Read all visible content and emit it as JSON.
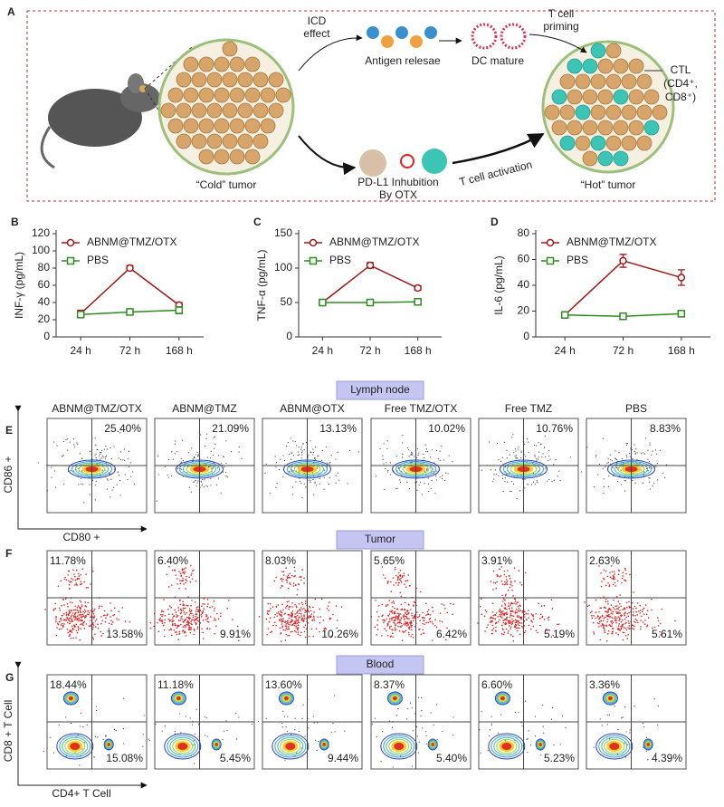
{
  "panel_a": {
    "letter": "A",
    "icd_effect": [
      "ICD",
      "effect"
    ],
    "antigen": "Antigen relesae",
    "dc": "DC mature",
    "priming": [
      "T cell",
      "priming"
    ],
    "ctl": [
      "CTL",
      "(CD4⁺,",
      "CD8⁺)"
    ],
    "cold": "“Cold” tumor",
    "pdl1": [
      "PD-L1 Inhubition",
      "By OTX"
    ],
    "activation": "T cell activation",
    "hot": "“Hot” tumor"
  },
  "chart_data": [
    {
      "type": "line",
      "panel": "B",
      "y_label": "INF-γ (pg/mL)",
      "categories": [
        "24 h",
        "72 h",
        "168 h"
      ],
      "ylim": [
        0,
        120
      ],
      "yticks": [
        0,
        20,
        40,
        60,
        80,
        100,
        120
      ],
      "legend": "upper left",
      "series": [
        {
          "name": "ABNM@TMZ/OTX",
          "color": "#a01818",
          "marker": "circle",
          "values": [
            27,
            80,
            37
          ],
          "errors": [
            4,
            3,
            3
          ]
        },
        {
          "name": "PBS",
          "color": "#2e8b1e",
          "marker": "square",
          "values": [
            26,
            29,
            31
          ],
          "errors": [
            3,
            3,
            4
          ]
        }
      ]
    },
    {
      "type": "line",
      "panel": "C",
      "y_label": "TNF-α (pg/mL)",
      "categories": [
        "24 h",
        "72 h",
        "168 h"
      ],
      "ylim": [
        0,
        150
      ],
      "yticks": [
        0,
        50,
        100,
        150
      ],
      "legend": "upper left",
      "series": [
        {
          "name": "ABNM@TMZ/OTX",
          "color": "#a01818",
          "marker": "circle",
          "values": [
            50,
            104,
            71
          ],
          "errors": [
            2,
            4,
            3
          ]
        },
        {
          "name": "PBS",
          "color": "#2e8b1e",
          "marker": "square",
          "values": [
            50,
            50,
            51
          ],
          "errors": [
            2,
            3,
            2
          ]
        }
      ]
    },
    {
      "type": "line",
      "panel": "D",
      "y_label": "IL-6 (pg/mL)",
      "categories": [
        "24 h",
        "72 h",
        "168 h"
      ],
      "ylim": [
        0,
        80
      ],
      "yticks": [
        0,
        20,
        40,
        60,
        80
      ],
      "legend": "upper left",
      "series": [
        {
          "name": "ABNM@TMZ/OTX",
          "color": "#a01818",
          "marker": "circle",
          "values": [
            17,
            59,
            46
          ],
          "errors": [
            1,
            5,
            6
          ]
        },
        {
          "name": "PBS",
          "color": "#2e8b1e",
          "marker": "square",
          "values": [
            17,
            16,
            18
          ],
          "errors": [
            1,
            1,
            2
          ]
        }
      ]
    }
  ],
  "flow": [
    {
      "letter": "E",
      "section": "Lymph node",
      "y_axis": "CD86 +",
      "x_axis": "CD80 +",
      "style": "contour",
      "plots": [
        {
          "title": "ABNM@TMZ/OTX",
          "upper_right": "25.40%"
        },
        {
          "title": "ABNM@TMZ",
          "upper_right": "21.09%"
        },
        {
          "title": "ABNM@OTX",
          "upper_right": "13.13%"
        },
        {
          "title": "Free TMZ/OTX",
          "upper_right": "10.02%"
        },
        {
          "title": "Free TMZ",
          "upper_right": "10.76%"
        },
        {
          "title": "PBS",
          "upper_right": "8.83%"
        }
      ]
    },
    {
      "letter": "F",
      "section": "Tumor",
      "style": "dots",
      "plots": [
        {
          "upper_left": "11.78%",
          "lower_right": "13.58%"
        },
        {
          "upper_left": "6.40%",
          "lower_right": "9.91%"
        },
        {
          "upper_left": "8.03%",
          "lower_right": "10.26%"
        },
        {
          "upper_left": "5.65%",
          "lower_right": "6.42%"
        },
        {
          "upper_left": "3.91%",
          "lower_right": "5.19%"
        },
        {
          "upper_left": "2.63%",
          "lower_right": "5.61%"
        }
      ]
    },
    {
      "letter": "G",
      "section": "Blood",
      "y_axis": "CD8 + T Cell",
      "x_axis": "CD4+ T Cell",
      "style": "islands",
      "plots": [
        {
          "upper_left": "18.44%",
          "lower_right": "15.08%"
        },
        {
          "upper_left": "11.18%",
          "lower_right": "5.45%"
        },
        {
          "upper_left": "13.60%",
          "lower_right": "9.44%"
        },
        {
          "upper_left": "8.37%",
          "lower_right": "5.40%"
        },
        {
          "upper_left": "6.60%",
          "lower_right": "5.23%"
        },
        {
          "upper_left": "3.36%",
          "lower_right": "4.39%"
        }
      ]
    }
  ]
}
